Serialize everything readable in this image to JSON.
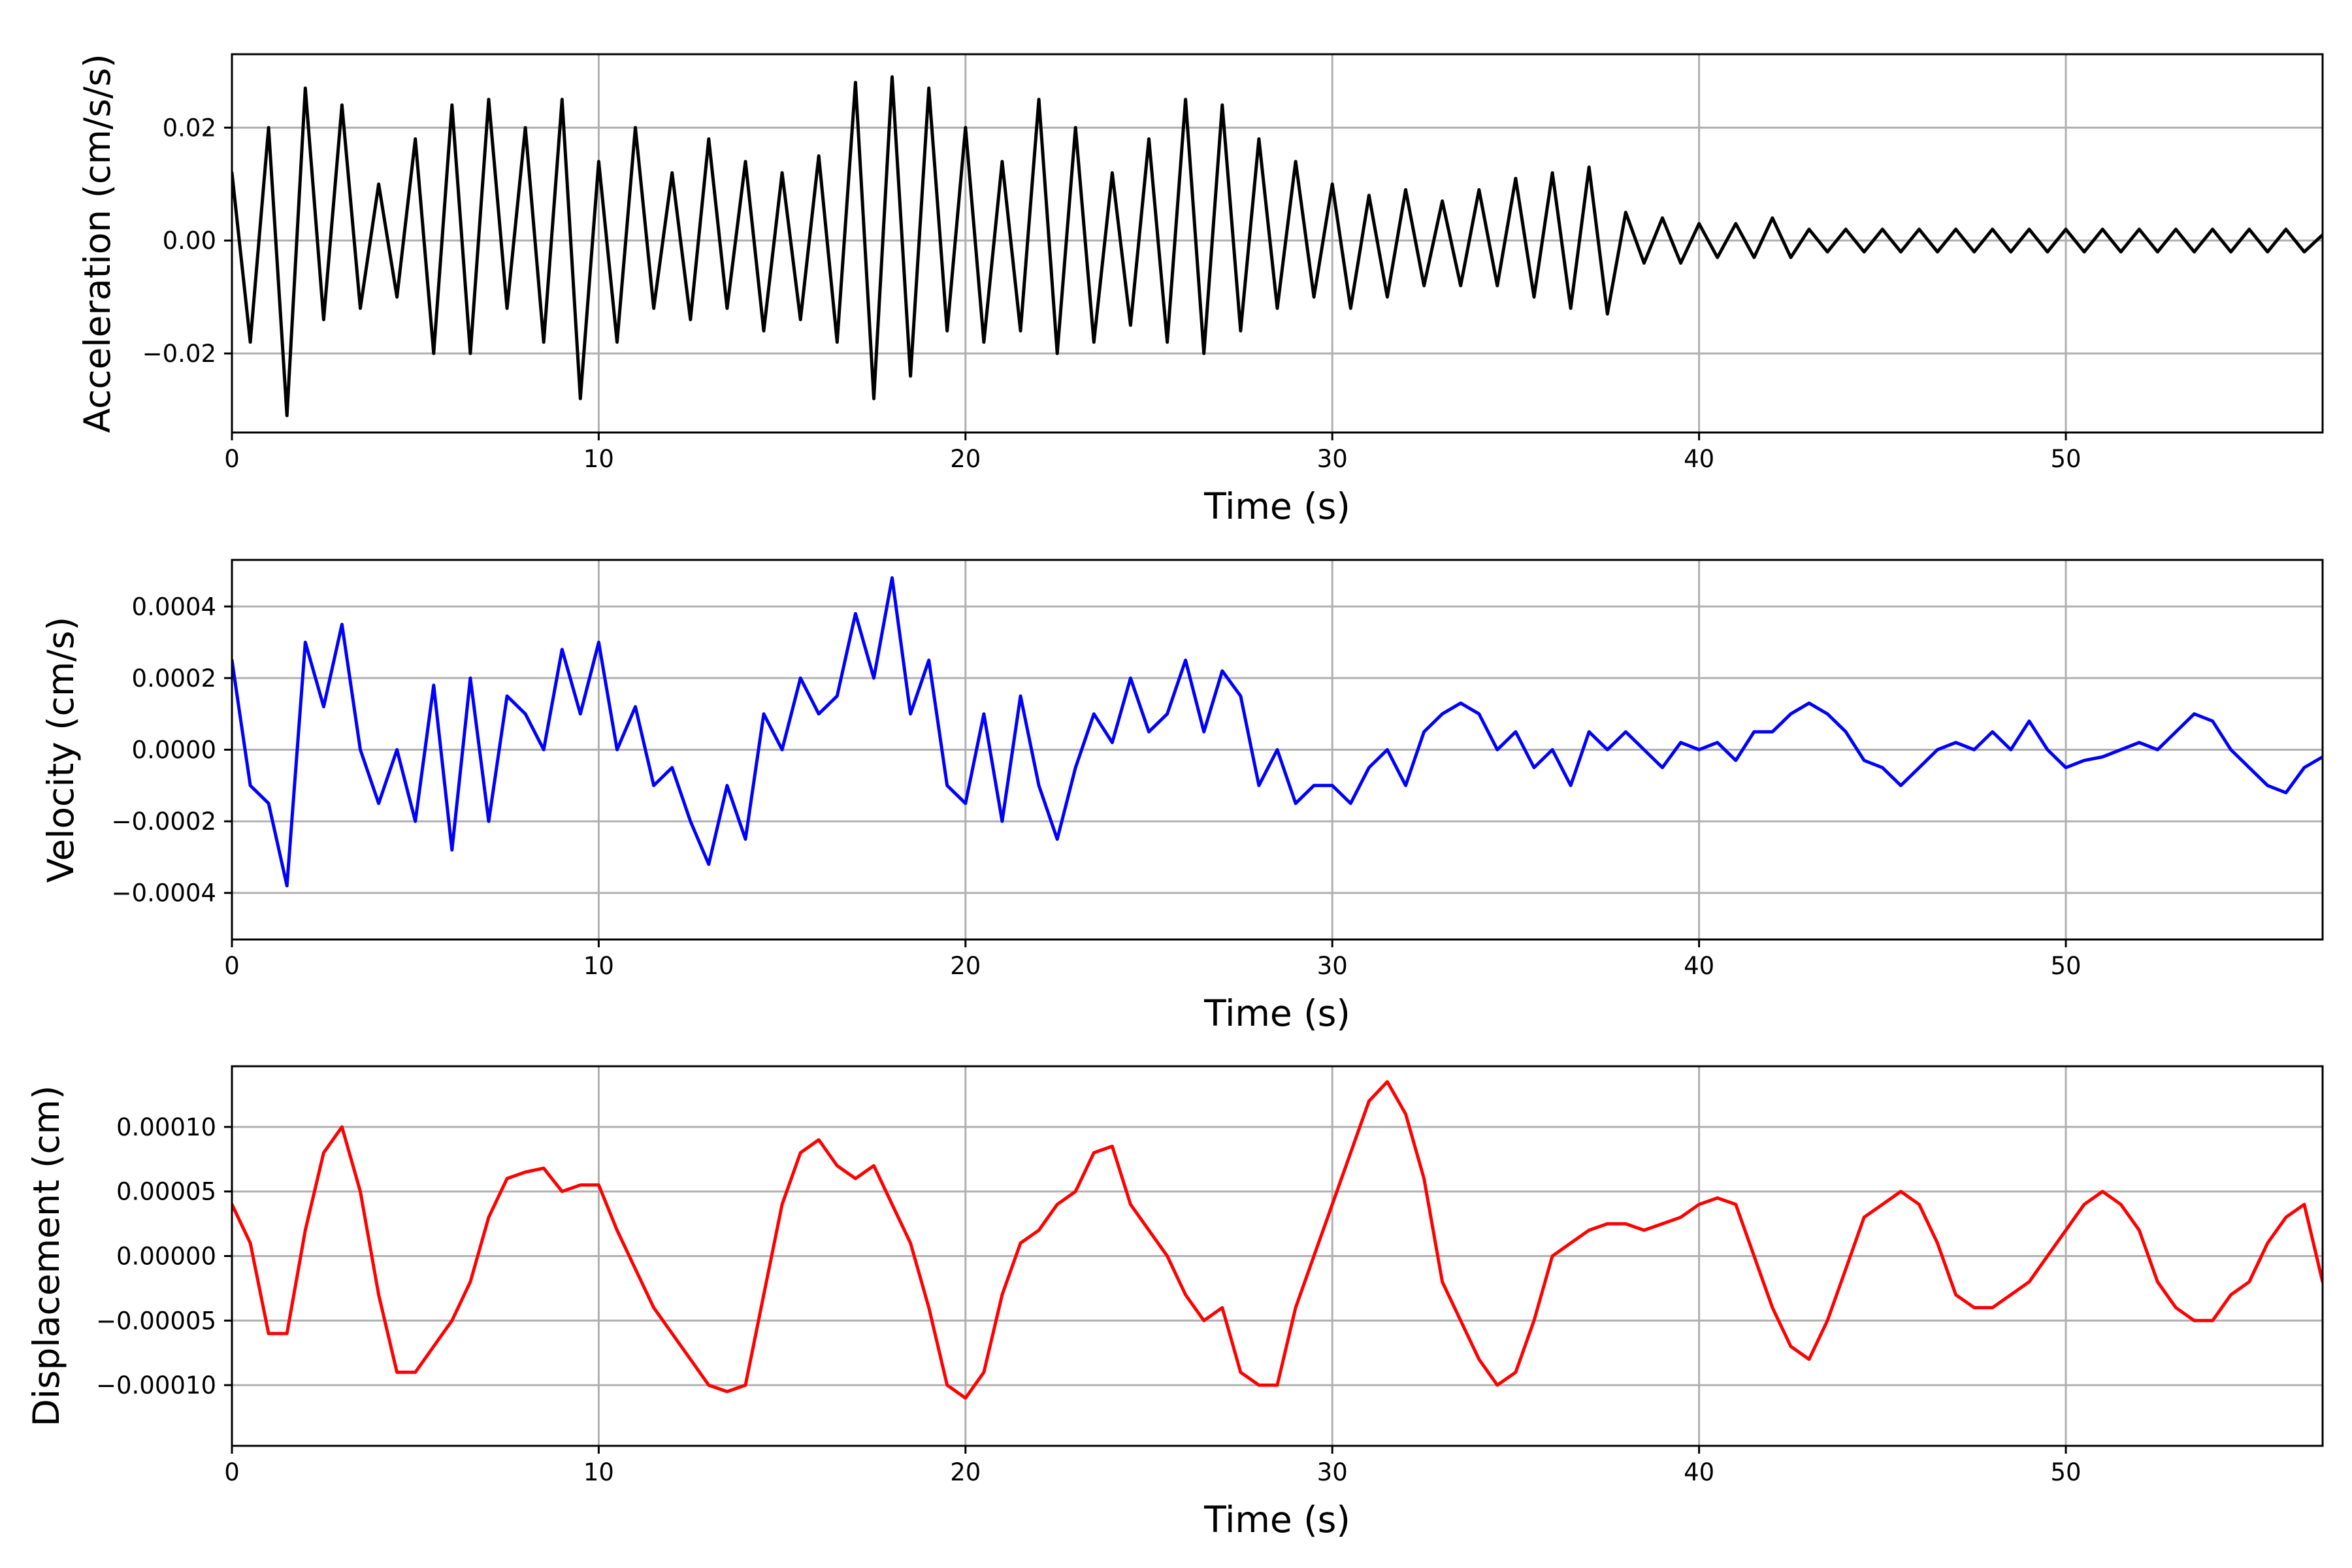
{
  "chart_data": [
    {
      "type": "line",
      "xlabel": "Time (s)",
      "ylabel": "Acceleration (cm/s/s)",
      "xlim": [
        0,
        57
      ],
      "ylim": [
        -0.034,
        0.033
      ],
      "xticks": [
        0,
        10,
        20,
        30,
        40,
        50
      ],
      "xtick_labels": [
        "0",
        "10",
        "20",
        "30",
        "40",
        "50"
      ],
      "yticks": [
        -0.02,
        0.0,
        0.02
      ],
      "ytick_labels": [
        "−0.02",
        "0.00",
        "0.02"
      ],
      "grid": true,
      "color": "#000000",
      "series": [
        {
          "x": [
            0,
            0.5,
            1,
            1.5,
            2,
            2.5,
            3,
            3.5,
            4,
            4.5,
            5,
            5.5,
            6,
            6.5,
            7,
            7.5,
            8,
            8.5,
            9,
            9.5,
            10,
            10.5,
            11,
            11.5,
            12,
            12.5,
            13,
            13.5,
            14,
            14.5,
            15,
            15.5,
            16,
            16.5,
            17,
            17.5,
            18,
            18.5,
            19,
            19.5,
            20,
            20.5,
            21,
            21.5,
            22,
            22.5,
            23,
            23.5,
            24,
            24.5,
            25,
            25.5,
            26,
            26.5,
            27,
            27.5,
            28,
            28.5,
            29,
            29.5,
            30,
            30.5,
            31,
            31.5,
            32,
            32.5,
            33,
            33.5,
            34,
            34.5,
            35,
            35.5,
            36,
            36.5,
            37,
            37.5,
            38,
            38.5,
            39,
            39.5,
            40,
            40.5,
            41,
            41.5,
            42,
            42.5,
            43,
            43.5,
            44,
            44.5,
            45,
            45.5,
            46,
            46.5,
            47,
            47.5,
            48,
            48.5,
            49,
            49.5,
            50,
            50.5,
            51,
            51.5,
            52,
            52.5,
            53,
            53.5,
            54,
            54.5,
            55,
            55.5,
            56,
            56.5,
            57
          ],
          "values": [
            0.012,
            -0.018,
            0.02,
            -0.031,
            0.027,
            -0.014,
            0.024,
            -0.012,
            0.01,
            -0.01,
            0.018,
            -0.02,
            0.024,
            -0.02,
            0.025,
            -0.012,
            0.02,
            -0.018,
            0.025,
            -0.028,
            0.014,
            -0.018,
            0.02,
            -0.012,
            0.012,
            -0.014,
            0.018,
            -0.012,
            0.014,
            -0.016,
            0.012,
            -0.014,
            0.015,
            -0.018,
            0.028,
            -0.028,
            0.029,
            -0.024,
            0.027,
            -0.016,
            0.02,
            -0.018,
            0.014,
            -0.016,
            0.025,
            -0.02,
            0.02,
            -0.018,
            0.012,
            -0.015,
            0.018,
            -0.018,
            0.025,
            -0.02,
            0.024,
            -0.016,
            0.018,
            -0.012,
            0.014,
            -0.01,
            0.01,
            -0.012,
            0.008,
            -0.01,
            0.009,
            -0.008,
            0.007,
            -0.008,
            0.009,
            -0.008,
            0.011,
            -0.01,
            0.012,
            -0.012,
            0.013,
            -0.013,
            0.005,
            -0.004,
            0.004,
            -0.004,
            0.003,
            -0.003,
            0.003,
            -0.003,
            0.004,
            -0.003,
            0.002,
            -0.002,
            0.002,
            -0.002,
            0.002,
            -0.002,
            0.002,
            -0.002,
            0.002,
            -0.002,
            0.002,
            -0.002,
            0.002,
            -0.002,
            0.002,
            -0.002,
            0.002,
            -0.002,
            0.002,
            -0.002,
            0.002,
            -0.002,
            0.002,
            -0.002,
            0.002,
            -0.002,
            0.002,
            -0.002,
            0.001
          ]
        }
      ]
    },
    {
      "type": "line",
      "xlabel": "Time (s)",
      "ylabel": "Velocity (cm/s)",
      "xlim": [
        0,
        57
      ],
      "ylim": [
        -0.00053,
        0.00053
      ],
      "xticks": [
        0,
        10,
        20,
        30,
        40,
        50
      ],
      "xtick_labels": [
        "0",
        "10",
        "20",
        "30",
        "40",
        "50"
      ],
      "yticks": [
        -0.0004,
        -0.0002,
        0.0,
        0.0002,
        0.0004
      ],
      "ytick_labels": [
        "−0.0004",
        "−0.0002",
        "0.0000",
        "0.0002",
        "0.0004"
      ],
      "grid": true,
      "color": "#0000ff",
      "series": [
        {
          "x": [
            0,
            0.5,
            1,
            1.5,
            2,
            2.5,
            3,
            3.5,
            4,
            4.5,
            5,
            5.5,
            6,
            6.5,
            7,
            7.5,
            8,
            8.5,
            9,
            9.5,
            10,
            10.5,
            11,
            11.5,
            12,
            12.5,
            13,
            13.5,
            14,
            14.5,
            15,
            15.5,
            16,
            16.5,
            17,
            17.5,
            18,
            18.5,
            19,
            19.5,
            20,
            20.5,
            21,
            21.5,
            22,
            22.5,
            23,
            23.5,
            24,
            24.5,
            25,
            25.5,
            26,
            26.5,
            27,
            27.5,
            28,
            28.5,
            29,
            29.5,
            30,
            30.5,
            31,
            31.5,
            32,
            32.5,
            33,
            33.5,
            34,
            34.5,
            35,
            35.5,
            36,
            36.5,
            37,
            37.5,
            38,
            38.5,
            39,
            39.5,
            40,
            40.5,
            41,
            41.5,
            42,
            42.5,
            43,
            43.5,
            44,
            44.5,
            45,
            45.5,
            46,
            46.5,
            47,
            47.5,
            48,
            48.5,
            49,
            49.5,
            50,
            50.5,
            51,
            51.5,
            52,
            52.5,
            53,
            53.5,
            54,
            54.5,
            55,
            55.5,
            56,
            56.5,
            57
          ],
          "values": [
            0.00025,
            -0.0001,
            -0.00015,
            -0.00038,
            0.0003,
            0.00012,
            0.00035,
            0.0,
            -0.00015,
            0.0,
            -0.0002,
            0.00018,
            -0.00028,
            0.0002,
            -0.0002,
            0.00015,
            0.0001,
            0.0,
            0.00028,
            0.0001,
            0.0003,
            0.0,
            0.00012,
            -0.0001,
            -5e-05,
            -0.0002,
            -0.00032,
            -0.0001,
            -0.00025,
            0.0001,
            0.0,
            0.0002,
            0.0001,
            0.00015,
            0.00038,
            0.0002,
            0.00048,
            0.0001,
            0.00025,
            -0.0001,
            -0.00015,
            0.0001,
            -0.0002,
            0.00015,
            -0.0001,
            -0.00025,
            -5e-05,
            0.0001,
            2e-05,
            0.0002,
            5e-05,
            0.0001,
            0.00025,
            5e-05,
            0.00022,
            0.00015,
            -0.0001,
            0.0,
            -0.00015,
            -0.0001,
            -0.0001,
            -0.00015,
            -5e-05,
            0.0,
            -0.0001,
            5e-05,
            0.0001,
            0.00013,
            0.0001,
            0.0,
            5e-05,
            -5e-05,
            0.0,
            -0.0001,
            5e-05,
            0.0,
            5e-05,
            0.0,
            -5e-05,
            2e-05,
            0.0,
            2e-05,
            -3e-05,
            5e-05,
            5e-05,
            0.0001,
            0.00013,
            0.0001,
            5e-05,
            -3e-05,
            -5e-05,
            -0.0001,
            -5e-05,
            0.0,
            2e-05,
            0.0,
            5e-05,
            0.0,
            8e-05,
            0.0,
            -5e-05,
            -3e-05,
            -2e-05,
            0.0,
            2e-05,
            0.0,
            5e-05,
            0.0001,
            8e-05,
            0.0,
            -5e-05,
            -0.0001,
            -0.00012,
            -5e-05,
            -2e-05
          ]
        }
      ]
    },
    {
      "type": "line",
      "xlabel": "Time (s)",
      "ylabel": "Displacement (cm)",
      "xlim": [
        0,
        57
      ],
      "ylim": [
        -0.000147,
        0.000147
      ],
      "xticks": [
        0,
        10,
        20,
        30,
        40,
        50
      ],
      "xtick_labels": [
        "0",
        "10",
        "20",
        "30",
        "40",
        "50"
      ],
      "yticks": [
        -0.0001,
        -5e-05,
        0.0,
        5e-05,
        0.0001
      ],
      "ytick_labels": [
        "−0.00010",
        "−0.00005",
        "0.00000",
        "0.00005",
        "0.00010"
      ],
      "grid": true,
      "color": "#ff0000",
      "series": [
        {
          "x": [
            0,
            0.5,
            1,
            1.5,
            2,
            2.5,
            3,
            3.5,
            4,
            4.5,
            5,
            5.5,
            6,
            6.5,
            7,
            7.5,
            8,
            8.5,
            9,
            9.5,
            10,
            10.5,
            11,
            11.5,
            12,
            12.5,
            13,
            13.5,
            14,
            14.5,
            15,
            15.5,
            16,
            16.5,
            17,
            17.5,
            18,
            18.5,
            19,
            19.5,
            20,
            20.5,
            21,
            21.5,
            22,
            22.5,
            23,
            23.5,
            24,
            24.5,
            25,
            25.5,
            26,
            26.5,
            27,
            27.5,
            28,
            28.5,
            29,
            29.5,
            30,
            30.5,
            31,
            31.5,
            32,
            32.5,
            33,
            33.5,
            34,
            34.5,
            35,
            35.5,
            36,
            36.5,
            37,
            37.5,
            38,
            38.5,
            39,
            39.5,
            40,
            40.5,
            41,
            41.5,
            42,
            42.5,
            43,
            43.5,
            44,
            44.5,
            45,
            45.5,
            46,
            46.5,
            47,
            47.5,
            48,
            48.5,
            49,
            49.5,
            50,
            50.5,
            51,
            51.5,
            52,
            52.5,
            53,
            53.5,
            54,
            54.5,
            55,
            55.5,
            56,
            56.5,
            57
          ],
          "values": [
            4e-05,
            1e-05,
            -6e-05,
            -6e-05,
            2e-05,
            8e-05,
            0.0001,
            5e-05,
            -3e-05,
            -9e-05,
            -9e-05,
            -7e-05,
            -5e-05,
            -2e-05,
            3e-05,
            6e-05,
            6.5e-05,
            6.8e-05,
            5e-05,
            5.5e-05,
            5.5e-05,
            2e-05,
            -1e-05,
            -4e-05,
            -6e-05,
            -8e-05,
            -0.0001,
            -0.000105,
            -0.0001,
            -3e-05,
            4e-05,
            8e-05,
            9e-05,
            7e-05,
            6e-05,
            7e-05,
            4e-05,
            1e-05,
            -4e-05,
            -0.0001,
            -0.00011,
            -9e-05,
            -3e-05,
            1e-05,
            2e-05,
            4e-05,
            5e-05,
            8e-05,
            8.5e-05,
            4e-05,
            2e-05,
            0.0,
            -3e-05,
            -5e-05,
            -4e-05,
            -9e-05,
            -0.0001,
            -0.0001,
            -4e-05,
            0.0,
            4e-05,
            8e-05,
            0.00012,
            0.000135,
            0.00011,
            6e-05,
            -2e-05,
            -5e-05,
            -8e-05,
            -0.0001,
            -9e-05,
            -5e-05,
            0.0,
            1e-05,
            2e-05,
            2.5e-05,
            2.5e-05,
            2e-05,
            2.5e-05,
            3e-05,
            4e-05,
            4.5e-05,
            4e-05,
            0.0,
            -4e-05,
            -7e-05,
            -8e-05,
            -5e-05,
            -1e-05,
            3e-05,
            4e-05,
            5e-05,
            4e-05,
            1e-05,
            -3e-05,
            -4e-05,
            -4e-05,
            -3e-05,
            -2e-05,
            0.0,
            2e-05,
            4e-05,
            5e-05,
            4e-05,
            2e-05,
            -2e-05,
            -4e-05,
            -5e-05,
            -5e-05,
            -3e-05,
            -2e-05,
            1e-05,
            3e-05,
            4e-05,
            -2e-05
          ]
        }
      ]
    }
  ]
}
